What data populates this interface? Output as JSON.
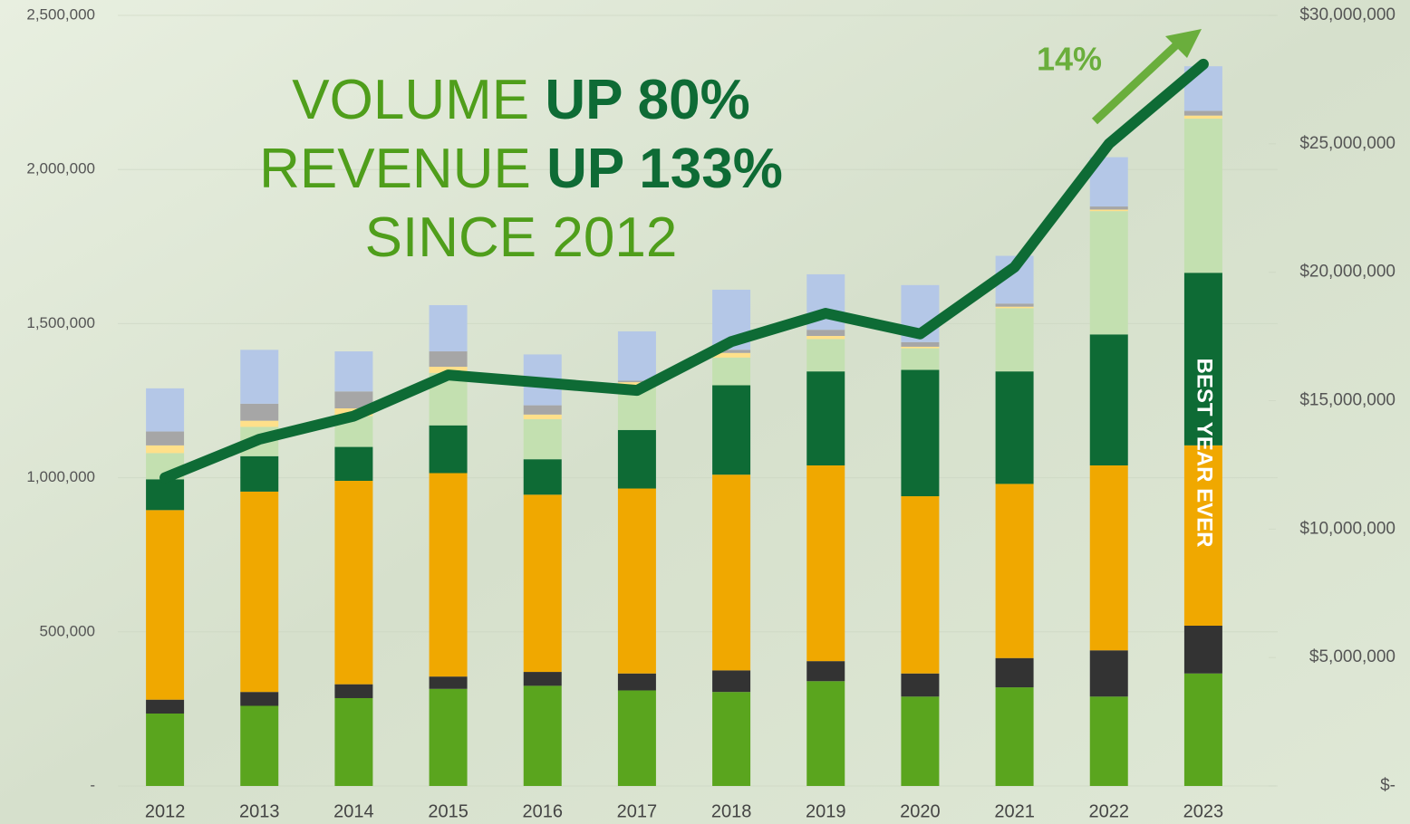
{
  "chart_data": {
    "type": "bar",
    "categories": [
      "2012",
      "2013",
      "2014",
      "2015",
      "2016",
      "2017",
      "2018",
      "2019",
      "2020",
      "2021",
      "2022",
      "2023"
    ],
    "series": [
      {
        "color": "#5aa51e",
        "values": [
          235000,
          260000,
          285000,
          315000,
          325000,
          310000,
          305000,
          340000,
          290000,
          320000,
          290000,
          365000
        ]
      },
      {
        "color": "#333333",
        "values": [
          45000,
          45000,
          45000,
          40000,
          45000,
          55000,
          70000,
          65000,
          75000,
          95000,
          150000,
          155000
        ]
      },
      {
        "color": "#f0a800",
        "values": [
          615000,
          650000,
          660000,
          660000,
          575000,
          600000,
          635000,
          635000,
          575000,
          565000,
          600000,
          585000
        ]
      },
      {
        "color": "#0e6b35",
        "values": [
          100000,
          115000,
          110000,
          155000,
          115000,
          190000,
          290000,
          305000,
          410000,
          365000,
          425000,
          560000
        ]
      },
      {
        "color": "#c3e0b0",
        "values": [
          85000,
          95000,
          100000,
          170000,
          130000,
          145000,
          90000,
          105000,
          70000,
          205000,
          400000,
          500000
        ]
      },
      {
        "color": "#ffe08a",
        "values": [
          25000,
          20000,
          25000,
          20000,
          15000,
          10000,
          15000,
          10000,
          5000,
          5000,
          5000,
          10000
        ]
      },
      {
        "color": "#a6a6a6",
        "values": [
          45000,
          55000,
          55000,
          50000,
          30000,
          5000,
          10000,
          20000,
          15000,
          10000,
          10000,
          15000
        ]
      },
      {
        "color": "#b4c7e7",
        "values": [
          140000,
          175000,
          130000,
          150000,
          165000,
          160000,
          195000,
          180000,
          185000,
          155000,
          160000,
          145000
        ]
      },
      {
        "type": "line",
        "axis": "y2",
        "color": "#0e6b35",
        "values": [
          12000000,
          13500000,
          14400000,
          16000000,
          15700000,
          15400000,
          17300000,
          18400000,
          17600000,
          20200000,
          25000000,
          28100000
        ]
      }
    ],
    "ylim": [
      0,
      2500000
    ],
    "yticks": [
      {
        "value": 0,
        "label": "-"
      },
      {
        "value": 500000,
        "label": "500,000"
      },
      {
        "value": 1000000,
        "label": "1,000,000"
      },
      {
        "value": 1500000,
        "label": "1,500,000"
      },
      {
        "value": 2000000,
        "label": "2,000,000"
      },
      {
        "value": 2500000,
        "label": "2,500,000"
      }
    ],
    "y2lim": [
      0,
      30000000
    ],
    "y2ticks": [
      {
        "value": 0,
        "label": "$-"
      },
      {
        "value": 5000000,
        "label": "$5,000,000"
      },
      {
        "value": 10000000,
        "label": "$10,000,000"
      },
      {
        "value": 15000000,
        "label": "$15,000,000"
      },
      {
        "value": 20000000,
        "label": "$20,000,000"
      },
      {
        "value": 25000000,
        "label": "$25,000,000"
      },
      {
        "value": 30000000,
        "label": "$30,000,000"
      }
    ],
    "grid": true,
    "headline": [
      {
        "text": "VOLUME",
        "emphasis": "UP 80%"
      },
      {
        "text": "REVENUE",
        "emphasis": "UP 133%"
      },
      {
        "text": "SINCE 2012"
      }
    ],
    "growth_label": "14%",
    "bar_note": "BEST YEAR EVER"
  }
}
